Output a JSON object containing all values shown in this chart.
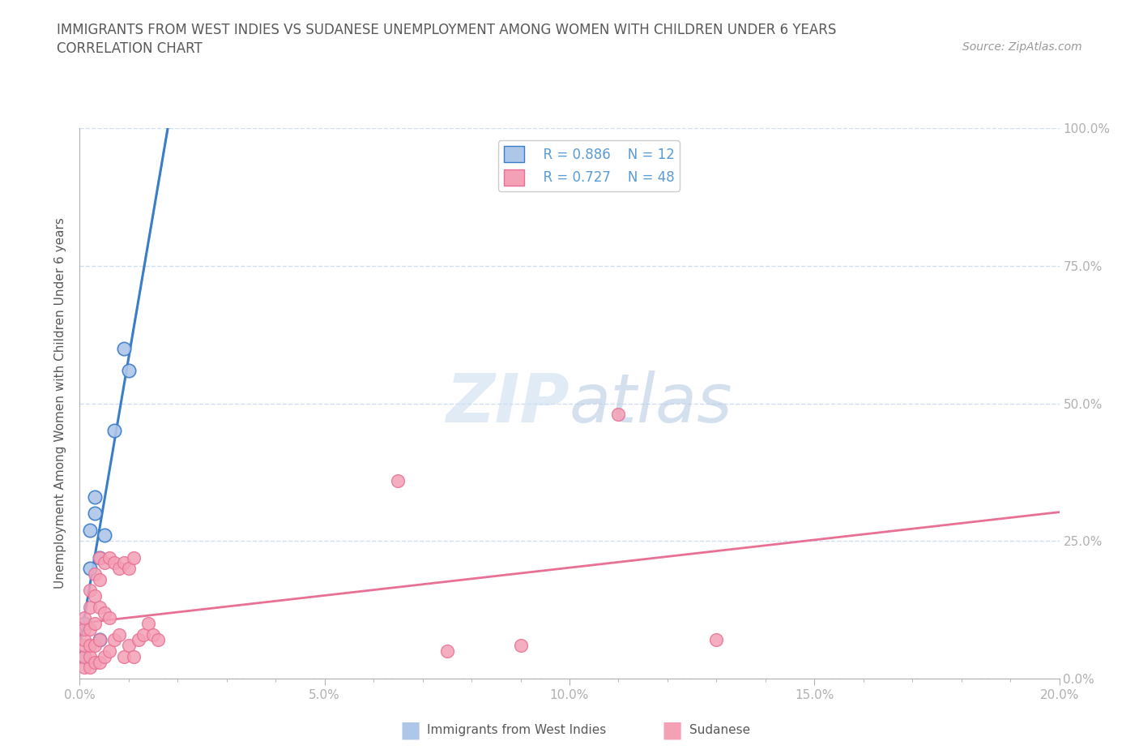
{
  "title_line1": "IMMIGRANTS FROM WEST INDIES VS SUDANESE UNEMPLOYMENT AMONG WOMEN WITH CHILDREN UNDER 6 YEARS",
  "title_line2": "CORRELATION CHART",
  "source_text": "Source: ZipAtlas.com",
  "ylabel": "Unemployment Among Women with Children Under 6 years",
  "xlim": [
    0.0,
    0.2
  ],
  "ylim": [
    0.0,
    1.0
  ],
  "xtick_labels": [
    "0.0%",
    "",
    "",
    "",
    "",
    "5.0%",
    "",
    "",
    "",
    "",
    "10.0%",
    "",
    "",
    "",
    "",
    "15.0%",
    "",
    "",
    "",
    "",
    "20.0%"
  ],
  "xtick_vals": [
    0.0,
    0.01,
    0.02,
    0.03,
    0.04,
    0.05,
    0.06,
    0.07,
    0.08,
    0.09,
    0.1,
    0.11,
    0.12,
    0.13,
    0.14,
    0.15,
    0.16,
    0.17,
    0.18,
    0.19,
    0.2
  ],
  "ytick_vals": [
    0.0,
    0.25,
    0.5,
    0.75,
    1.0
  ],
  "ytick_labels": [
    "0.0%",
    "25.0%",
    "50.0%",
    "75.0%",
    "100.0%"
  ],
  "axis_color": "#b0b0b0",
  "grid_color": "#d0dff0",
  "legend_R1": "R = 0.886",
  "legend_N1": "N = 12",
  "legend_R2": "R = 0.727",
  "legend_N2": "N = 48",
  "color_west_indies": "#aec6e8",
  "color_sudanese": "#f4a0b5",
  "color_west_indies_line": "#3a7dc9",
  "color_sudanese_line": "#e87095",
  "west_indies_x": [
    0.001,
    0.001,
    0.002,
    0.002,
    0.003,
    0.003,
    0.004,
    0.004,
    0.005,
    0.007,
    0.009,
    0.01
  ],
  "west_indies_y": [
    0.04,
    0.1,
    0.2,
    0.27,
    0.3,
    0.33,
    0.07,
    0.22,
    0.26,
    0.45,
    0.6,
    0.56
  ],
  "sudanese_x": [
    0.001,
    0.001,
    0.001,
    0.001,
    0.001,
    0.001,
    0.002,
    0.002,
    0.002,
    0.002,
    0.002,
    0.002,
    0.003,
    0.003,
    0.003,
    0.003,
    0.003,
    0.004,
    0.004,
    0.004,
    0.004,
    0.004,
    0.005,
    0.005,
    0.005,
    0.006,
    0.006,
    0.006,
    0.007,
    0.007,
    0.008,
    0.008,
    0.009,
    0.009,
    0.01,
    0.01,
    0.011,
    0.011,
    0.012,
    0.013,
    0.014,
    0.015,
    0.016,
    0.065,
    0.075,
    0.09,
    0.11,
    0.13
  ],
  "sudanese_y": [
    0.02,
    0.04,
    0.06,
    0.07,
    0.09,
    0.11,
    0.02,
    0.04,
    0.06,
    0.09,
    0.13,
    0.16,
    0.03,
    0.06,
    0.1,
    0.15,
    0.19,
    0.03,
    0.07,
    0.13,
    0.18,
    0.22,
    0.04,
    0.12,
    0.21,
    0.05,
    0.11,
    0.22,
    0.07,
    0.21,
    0.08,
    0.2,
    0.04,
    0.21,
    0.06,
    0.2,
    0.04,
    0.22,
    0.07,
    0.08,
    0.1,
    0.08,
    0.07,
    0.36,
    0.05,
    0.06,
    0.48,
    0.07
  ],
  "background_color": "#ffffff",
  "title_color": "#595959",
  "tick_color": "#5b9bd5"
}
